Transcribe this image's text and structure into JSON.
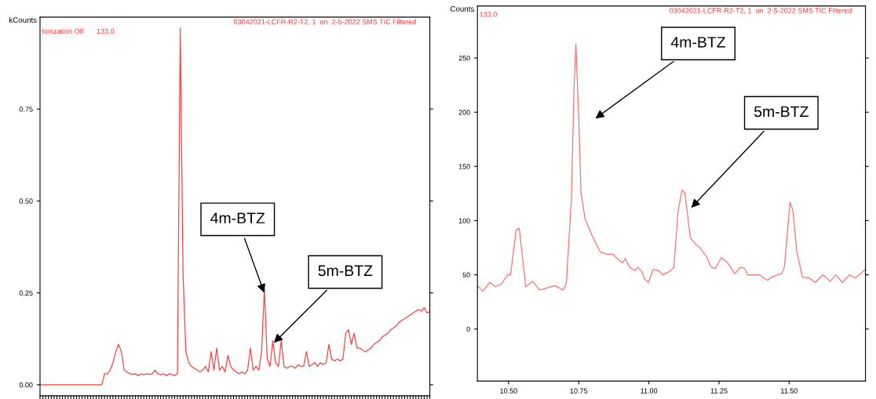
{
  "chart_data": [
    {
      "type": "line",
      "ylabel": "kCounts",
      "tick_labels": "y",
      "categories": [
        null,
        null,
        null,
        null,
        null,
        null,
        null,
        null,
        null,
        null,
        null,
        null,
        null,
        null,
        null,
        null,
        null,
        null,
        null,
        null,
        null,
        null,
        null,
        null,
        null,
        null,
        null,
        null,
        null,
        null,
        null,
        null,
        null,
        null,
        null,
        null,
        null,
        null,
        null,
        null,
        null,
        null,
        null,
        null,
        null,
        null,
        null,
        null,
        null,
        null,
        null,
        null,
        null,
        null,
        null,
        null,
        null,
        null,
        null,
        null,
        null,
        null,
        null,
        null,
        null,
        null,
        null,
        null,
        null,
        null,
        null,
        null,
        null,
        null,
        null,
        null,
        null,
        null,
        null,
        null,
        null,
        null,
        null,
        null,
        null,
        null,
        null,
        null,
        null,
        null,
        null,
        null,
        null,
        null,
        null,
        null,
        null,
        null,
        null,
        null,
        null,
        null,
        null,
        null,
        null,
        null,
        null,
        null,
        null,
        null,
        null,
        null,
        null,
        null,
        null,
        null,
        null,
        null,
        null,
        null,
        null,
        null,
        null,
        null,
        null,
        null,
        null,
        null,
        null,
        null,
        null,
        null,
        null,
        null,
        null,
        null,
        null,
        null,
        null,
        null
      ],
      "series": [
        {
          "color": "#ff4040",
          "values": [
            0,
            0,
            0,
            0,
            0,
            0,
            0,
            0,
            0,
            0,
            0,
            0,
            0,
            0,
            0,
            0,
            0,
            0,
            0,
            0,
            0,
            0,
            0,
            0.03,
            0.03,
            0.04,
            0.06,
            0.09,
            0.11,
            0.09,
            0.04,
            0.035,
            0.03,
            0.028,
            0.03,
            0.025,
            0.03,
            0.027,
            0.03,
            0.028,
            0.03,
            0.04,
            0.03,
            0.027,
            0.03,
            0.025,
            0.03,
            0.028,
            0.025,
            0.03,
            0.97,
            0.3,
            0.09,
            0.06,
            0.05,
            0.045,
            0.04,
            0.035,
            0.04,
            0.05,
            0.035,
            0.09,
            0.04,
            0.1,
            0.04,
            0.05,
            0.035,
            0.08,
            0.05,
            0.04,
            0.035,
            0.03,
            0.035,
            0.03,
            0.04,
            0.1,
            0.04,
            0.05,
            0.04,
            0.09,
            0.26,
            0.07,
            0.05,
            0.12,
            0.06,
            0.05,
            0.12,
            0.05,
            0.045,
            0.05,
            0.05,
            0.045,
            0.055,
            0.05,
            0.05,
            0.09,
            0.05,
            0.055,
            0.06,
            0.05,
            0.06,
            0.055,
            0.06,
            0.11,
            0.07,
            0.065,
            0.07,
            0.065,
            0.07,
            0.14,
            0.15,
            0.11,
            0.14,
            0.1,
            0.1,
            0.095,
            0.09,
            0.095,
            0.1,
            0.11,
            0.115,
            0.12,
            0.13,
            0.135,
            0.14,
            0.15,
            0.155,
            0.16,
            0.17,
            0.175,
            0.18,
            0.185,
            0.19,
            0.195,
            0.2,
            0.205,
            0.2,
            0.21,
            0.195,
            0.2
          ]
        }
      ],
      "ylim": [
        -0.03,
        1.0
      ],
      "yticks": [
        {
          "value": 0,
          "label": "0.00"
        },
        {
          "value": 0.25,
          "label": "0.25"
        },
        {
          "value": 0.5,
          "label": "0.50"
        },
        {
          "value": 0.75,
          "label": "0.75"
        }
      ],
      "annotations": [
        "03042021-LCFR-R2-T2, 1  on  2-5-2022 SMS TIC Filtered",
        "Ionization Off",
        "133.0",
        "4m-BTZ",
        "5m-BTZ"
      ]
    },
    {
      "type": "line",
      "ylabel": "Counts",
      "x": [
        10.389,
        10.408,
        10.433,
        10.453,
        10.472,
        10.497,
        10.507,
        10.527,
        10.538,
        10.561,
        10.586,
        10.611,
        10.64,
        10.665,
        10.694,
        10.706,
        10.724,
        10.733,
        10.74,
        10.75,
        10.758,
        10.773,
        10.798,
        10.827,
        10.852,
        10.872,
        10.891,
        10.906,
        10.916,
        10.931,
        10.951,
        10.961,
        10.975,
        10.985,
        10.998,
        11.015,
        11.034,
        11.049,
        11.074,
        11.089,
        11.104,
        11.118,
        11.128,
        11.148,
        11.168,
        11.182,
        11.207,
        11.222,
        11.237,
        11.259,
        11.281,
        11.306,
        11.326,
        11.341,
        11.352,
        11.37,
        11.395,
        11.409,
        11.424,
        11.439,
        11.459,
        11.473,
        11.483,
        11.503,
        11.513,
        11.527,
        11.547,
        11.572,
        11.592,
        11.621,
        11.646,
        11.666,
        11.69,
        11.715,
        11.735,
        11.759,
        11.772
      ],
      "series": [
        {
          "color": "#ff7070",
          "values": [
            40,
            35,
            43,
            39,
            41,
            50,
            50,
            91,
            93,
            39,
            44,
            36,
            38,
            40,
            36,
            42,
            121,
            220,
            263,
            195,
            126,
            101,
            86,
            71,
            69,
            69,
            64,
            61,
            65,
            57,
            54,
            57,
            53,
            46,
            43,
            55,
            54,
            50,
            53,
            57,
            109,
            128,
            126,
            84,
            78,
            75,
            66,
            57,
            56,
            66,
            61,
            51,
            57,
            56,
            50,
            50,
            50,
            47,
            45,
            48,
            50,
            51,
            57,
            117,
            110,
            72,
            48,
            47,
            43,
            50,
            44,
            50,
            43,
            50,
            47,
            52,
            55
          ]
        }
      ],
      "xlim": [
        10.389,
        11.772
      ],
      "xticks": [
        {
          "value": 10.5,
          "label": "10.50"
        },
        {
          "value": 10.75,
          "label": "10.75"
        },
        {
          "value": 11.0,
          "label": "11.00"
        },
        {
          "value": 11.25,
          "label": "11.25"
        },
        {
          "value": 11.5,
          "label": "11.50"
        }
      ],
      "ylim": [
        -48,
        298
      ],
      "yticks": [
        0,
        50,
        100,
        150,
        200,
        250
      ],
      "annotations": [
        "03042021-LCFR-R2-T2, 1  on  2-5-2022 SMS TIC Filtered",
        "133.0",
        "4m-BTZ",
        "5m-BTZ"
      ]
    }
  ]
}
